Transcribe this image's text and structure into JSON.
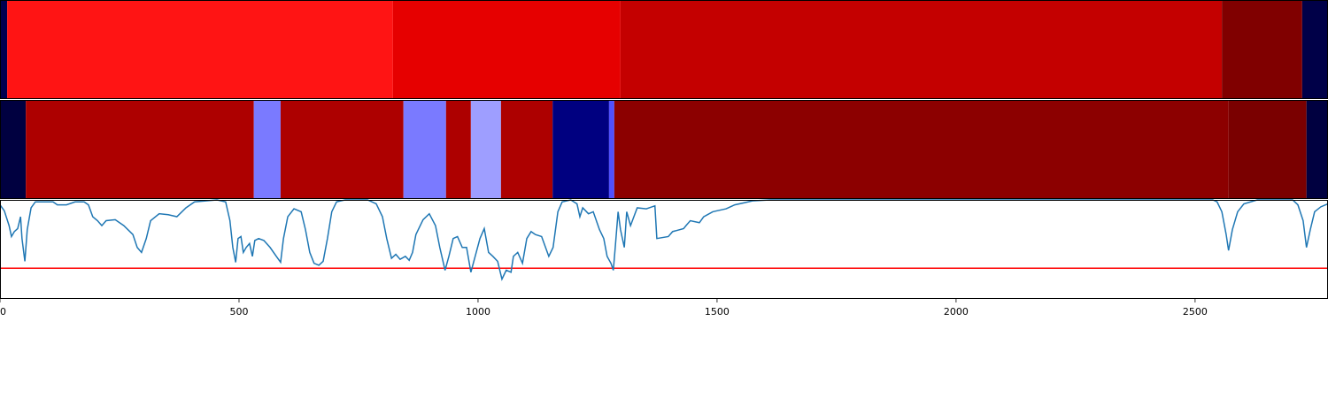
{
  "chart_data": [
    {
      "type": "segments",
      "xlim": [
        0,
        2778
      ],
      "segments": [
        {
          "start": 0,
          "end": 15,
          "color": "#000050"
        },
        {
          "start": 15,
          "end": 822,
          "color": "#ff1414"
        },
        {
          "start": 822,
          "end": 1298,
          "color": "#e60000"
        },
        {
          "start": 1298,
          "end": 2556,
          "color": "#c40000"
        },
        {
          "start": 2556,
          "end": 2724,
          "color": "#800000"
        },
        {
          "start": 2724,
          "end": 2778,
          "color": "#000048"
        }
      ]
    },
    {
      "type": "segments",
      "xlim": [
        0,
        2778
      ],
      "segments": [
        {
          "start": 0,
          "end": 54,
          "color": "#000040"
        },
        {
          "start": 54,
          "end": 531,
          "color": "#ad0000"
        },
        {
          "start": 531,
          "end": 587,
          "color": "#7a7aff"
        },
        {
          "start": 587,
          "end": 844,
          "color": "#ad0000"
        },
        {
          "start": 844,
          "end": 933,
          "color": "#7a7aff"
        },
        {
          "start": 933,
          "end": 985,
          "color": "#ad0000"
        },
        {
          "start": 985,
          "end": 1048,
          "color": "#9e9eff"
        },
        {
          "start": 1048,
          "end": 1156,
          "color": "#ad0000"
        },
        {
          "start": 1156,
          "end": 1274,
          "color": "#000080"
        },
        {
          "start": 1274,
          "end": 1285,
          "color": "#5050ff"
        },
        {
          "start": 1285,
          "end": 2570,
          "color": "#8c0000"
        },
        {
          "start": 2570,
          "end": 2733,
          "color": "#7a0000"
        },
        {
          "start": 2733,
          "end": 2778,
          "color": "#000040"
        }
      ]
    },
    {
      "type": "line",
      "xlim": [
        0,
        2778
      ],
      "ylim": [
        0,
        1
      ],
      "xticks": [
        0,
        500,
        1000,
        1500,
        2000,
        2500
      ],
      "threshold": 0.31,
      "threshold_color": "#ff0000",
      "series": [
        {
          "color": "#1f77b4",
          "x": [
            0,
            9,
            19,
            24,
            30,
            37,
            43,
            46,
            52,
            57,
            65,
            74,
            111,
            120,
            139,
            157,
            176,
            185,
            194,
            204,
            213,
            222,
            241,
            259,
            278,
            287,
            296,
            306,
            315,
            333,
            352,
            370,
            389,
            407,
            454,
            472,
            481,
            487,
            493,
            498,
            504,
            509,
            515,
            522,
            528,
            533,
            541,
            552,
            565,
            578,
            587,
            593,
            602,
            615,
            630,
            639,
            648,
            657,
            667,
            676,
            685,
            694,
            704,
            722,
            769,
            787,
            800,
            809,
            819,
            828,
            837,
            848,
            856,
            863,
            870,
            885,
            898,
            911,
            920,
            931,
            939,
            948,
            957,
            967,
            976,
            985,
            994,
            1004,
            1013,
            1022,
            1031,
            1041,
            1050,
            1059,
            1069,
            1074,
            1083,
            1093,
            1102,
            1111,
            1120,
            1133,
            1148,
            1157,
            1167,
            1176,
            1194,
            1207,
            1213,
            1219,
            1231,
            1241,
            1254,
            1263,
            1270,
            1278,
            1283,
            1287,
            1293,
            1298,
            1306,
            1311,
            1319,
            1326,
            1333,
            1352,
            1370,
            1374,
            1398,
            1407,
            1430,
            1435,
            1444,
            1463,
            1472,
            1491,
            1500,
            1519,
            1528,
            1537,
            1556,
            1574,
            1611,
            2537,
            2546,
            2556,
            2565,
            2570,
            2578,
            2589,
            2602,
            2630,
            2704,
            2715,
            2726,
            2733,
            2741,
            2750,
            2763,
            2778
          ],
          "values": [
            0.95,
            0.89,
            0.74,
            0.63,
            0.68,
            0.71,
            0.83,
            0.61,
            0.38,
            0.7,
            0.92,
            0.98,
            0.98,
            0.95,
            0.95,
            0.98,
            0.98,
            0.95,
            0.83,
            0.79,
            0.74,
            0.79,
            0.8,
            0.74,
            0.65,
            0.52,
            0.47,
            0.61,
            0.79,
            0.86,
            0.85,
            0.83,
            0.92,
            0.98,
            1.0,
            0.98,
            0.79,
            0.52,
            0.37,
            0.61,
            0.63,
            0.47,
            0.52,
            0.56,
            0.43,
            0.59,
            0.61,
            0.59,
            0.52,
            0.43,
            0.37,
            0.61,
            0.83,
            0.91,
            0.88,
            0.7,
            0.47,
            0.36,
            0.34,
            0.38,
            0.61,
            0.88,
            0.98,
            1.0,
            1.0,
            0.96,
            0.83,
            0.61,
            0.41,
            0.45,
            0.4,
            0.43,
            0.39,
            0.47,
            0.65,
            0.8,
            0.86,
            0.74,
            0.52,
            0.29,
            0.43,
            0.61,
            0.63,
            0.52,
            0.52,
            0.27,
            0.43,
            0.61,
            0.71,
            0.47,
            0.43,
            0.38,
            0.2,
            0.29,
            0.27,
            0.43,
            0.47,
            0.36,
            0.61,
            0.68,
            0.65,
            0.63,
            0.43,
            0.52,
            0.88,
            0.98,
            1.0,
            0.96,
            0.83,
            0.92,
            0.86,
            0.88,
            0.7,
            0.61,
            0.43,
            0.36,
            0.29,
            0.52,
            0.88,
            0.7,
            0.52,
            0.88,
            0.74,
            0.83,
            0.92,
            0.91,
            0.94,
            0.61,
            0.63,
            0.68,
            0.71,
            0.74,
            0.79,
            0.77,
            0.83,
            0.88,
            0.89,
            0.91,
            0.93,
            0.95,
            0.97,
            0.99,
            1.0,
            1.0,
            0.98,
            0.88,
            0.65,
            0.49,
            0.7,
            0.88,
            0.96,
            1.0,
            1.0,
            0.95,
            0.79,
            0.52,
            0.7,
            0.88,
            0.93,
            0.96
          ]
        }
      ]
    }
  ]
}
